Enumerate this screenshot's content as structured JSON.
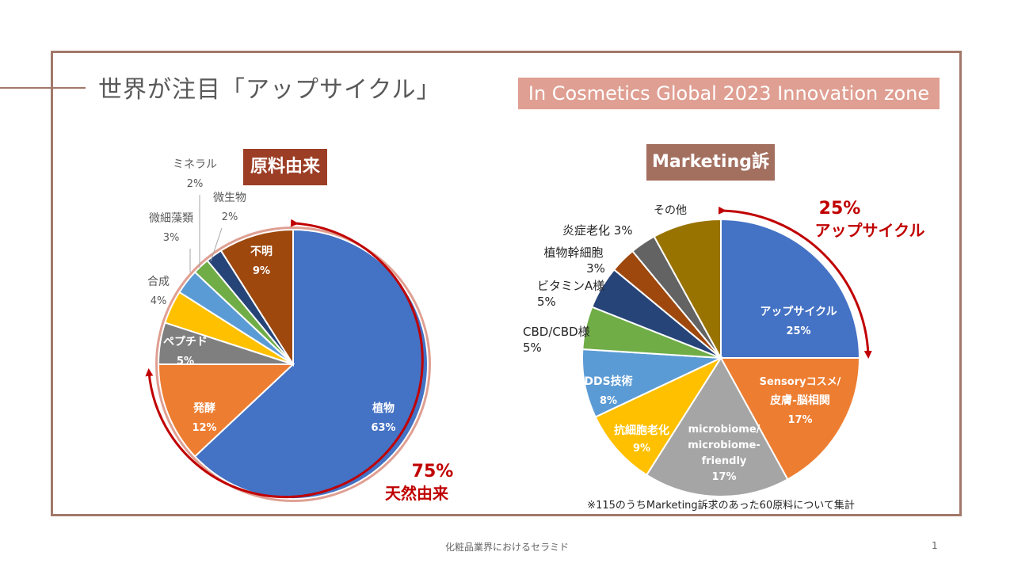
{
  "slide": {
    "title": "世界が注目「アップサイクル」",
    "badge": "In Cosmetics Global 2023 Innovation zone",
    "footer": "化粧品業界におけるセラミド",
    "page_number": "1"
  },
  "chart_data": [
    {
      "type": "pie",
      "title": "原料由来",
      "slices": [
        {
          "label": "植物",
          "value": 63,
          "pct": "63%",
          "color": "#4472c4"
        },
        {
          "label": "発酵",
          "value": 12,
          "pct": "12%",
          "color": "#ed7d31"
        },
        {
          "label": "ペプチド",
          "value": 5,
          "pct": "5%",
          "color": "#7f7f7f"
        },
        {
          "label": "合成",
          "value": 4,
          "pct": "4%",
          "color": "#ffc000"
        },
        {
          "label": "微細藻類",
          "value": 3,
          "pct": "3%",
          "color": "#5b9bd5"
        },
        {
          "label": "ミネラル",
          "value": 2,
          "pct": "2%",
          "color": "#70ad47"
        },
        {
          "label": "微生物",
          "value": 2,
          "pct": "2%",
          "color": "#264478"
        },
        {
          "label": "不明",
          "value": 9,
          "pct": "9%",
          "color": "#9e480e"
        }
      ],
      "annotation": {
        "value": "75%",
        "text": "天然由来"
      }
    },
    {
      "type": "pie",
      "title": "Marketing訴求",
      "slices": [
        {
          "label": "アップサイクル",
          "value": 25,
          "pct": "25%",
          "color": "#4472c4"
        },
        {
          "label": "Sensoryコスメ/皮膚-脳相関",
          "value": 17,
          "pct": "17%",
          "color": "#ed7d31"
        },
        {
          "label": "microbiome/microbiome-friendly",
          "value": 17,
          "pct": "17%",
          "color": "#a5a5a5"
        },
        {
          "label": "抗細胞老化",
          "value": 9,
          "pct": "9%",
          "color": "#ffc000"
        },
        {
          "label": "DDS技術",
          "value": 8,
          "pct": "8%",
          "color": "#5b9bd5"
        },
        {
          "label": "CBD/CBD様",
          "value": 5,
          "pct": "5%",
          "color": "#70ad47"
        },
        {
          "label": "ビタミンA様",
          "value": 5,
          "pct": "5%",
          "color": "#264478"
        },
        {
          "label": "植物幹細胞",
          "value": 3,
          "pct": "3%",
          "color": "#9e480e"
        },
        {
          "label": "炎症老化",
          "value": 3,
          "pct": "3%",
          "color": "#636363"
        },
        {
          "label": "その他",
          "value": 8,
          "pct": "",
          "color": "#997300"
        }
      ],
      "annotation": {
        "value": "25%",
        "text": "アップサイクル"
      },
      "footnote": "※115のうちMarketing訴求のあった60原料について集計"
    }
  ]
}
